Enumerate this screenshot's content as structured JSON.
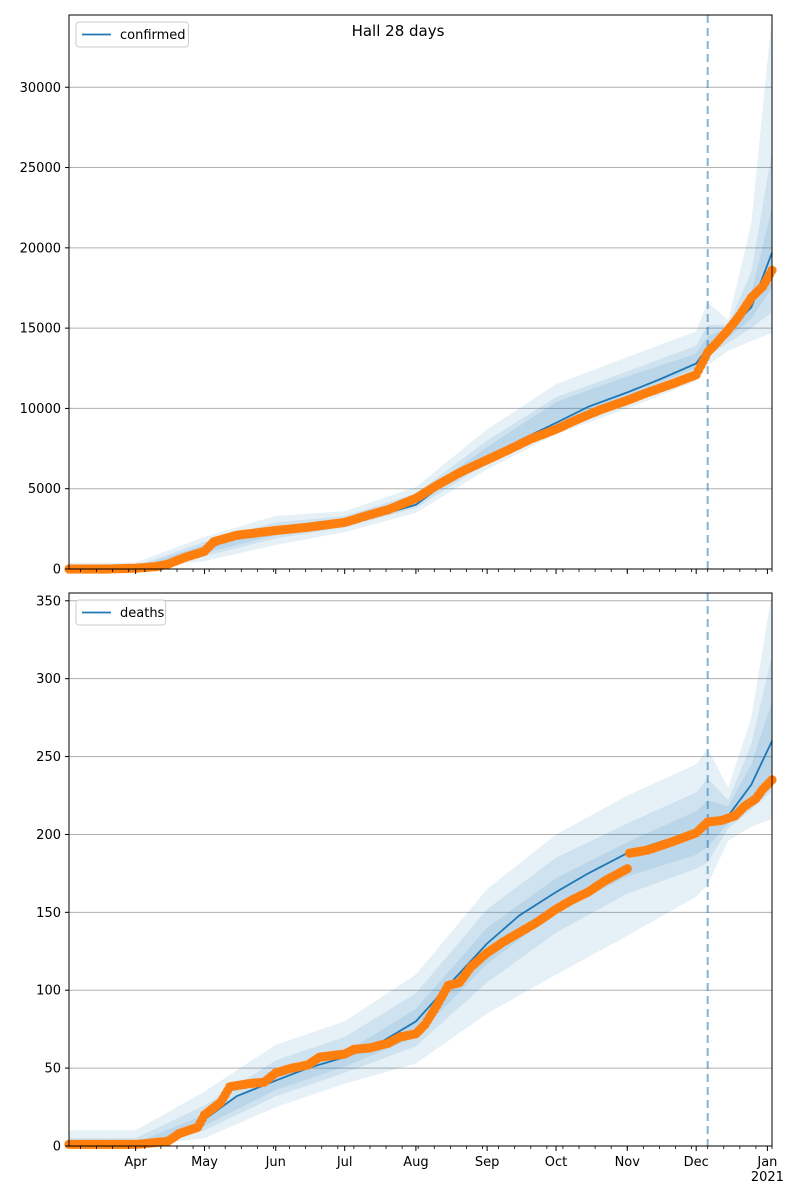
{
  "figure": {
    "title": "Hall 28 days"
  },
  "colors": {
    "model": "#1f77b4",
    "observed": "#ff7f0e",
    "band": "#1f77b4",
    "grid": "#b0b0b0",
    "forecast_line": "#1f77b4"
  },
  "chart_data": [
    {
      "type": "line",
      "title": "Hall 28 days",
      "legend": {
        "entries": [
          "confirmed"
        ],
        "placement": "top-left"
      },
      "grid": "horizontal",
      "ylim": [
        0,
        34500
      ],
      "xlim": [
        "2020-03-03",
        "2021-01-03"
      ],
      "yticks": [
        0,
        5000,
        10000,
        15000,
        20000,
        25000,
        30000
      ],
      "ytick_labels": [
        "0",
        "5000",
        "10000",
        "15000",
        "20000",
        "25000",
        "30000"
      ],
      "forecast_start": "2020-12-06",
      "series": [
        {
          "name": "confirmed",
          "kind": "model_median",
          "x": [
            "2020-03-03",
            "2020-04-01",
            "2020-04-15",
            "2020-05-01",
            "2020-05-15",
            "2020-06-01",
            "2020-06-15",
            "2020-07-01",
            "2020-07-15",
            "2020-08-01",
            "2020-08-15",
            "2020-09-01",
            "2020-09-15",
            "2020-10-01",
            "2020-10-15",
            "2020-11-01",
            "2020-11-15",
            "2020-12-01",
            "2020-12-06",
            "2020-12-15",
            "2020-12-25",
            "2021-01-03"
          ],
          "y": [
            0,
            0,
            300,
            1200,
            2000,
            2300,
            2600,
            2800,
            3300,
            4000,
            5500,
            6800,
            8000,
            9100,
            10100,
            11000,
            11800,
            12800,
            13800,
            14800,
            16300,
            19700
          ]
        },
        {
          "name": "",
          "kind": "observed",
          "x": [
            "2020-03-03",
            "2020-03-20",
            "2020-04-01",
            "2020-04-10",
            "2020-04-15",
            "2020-04-22",
            "2020-05-01",
            "2020-05-05",
            "2020-05-15",
            "2020-06-01",
            "2020-06-15",
            "2020-07-01",
            "2020-07-10",
            "2020-07-20",
            "2020-08-01",
            "2020-08-10",
            "2020-08-20",
            "2020-09-01",
            "2020-09-10",
            "2020-09-20",
            "2020-10-01",
            "2020-10-10",
            "2020-10-20",
            "2020-11-01",
            "2020-11-10",
            "2020-11-20",
            "2020-12-01",
            "2020-12-06",
            "2020-12-10",
            "2020-12-15",
            "2020-12-20",
            "2020-12-25",
            "2020-12-30",
            "2021-01-03"
          ],
          "y": [
            0,
            0,
            50,
            150,
            300,
            700,
            1100,
            1700,
            2100,
            2400,
            2600,
            2900,
            3300,
            3700,
            4400,
            5200,
            6000,
            6800,
            7400,
            8100,
            8700,
            9300,
            9900,
            10500,
            11000,
            11500,
            12100,
            13500,
            14100,
            14900,
            15800,
            16900,
            17600,
            18600
          ]
        }
      ],
      "bands": [
        {
          "level": "outer",
          "x": [
            "2020-03-03",
            "2020-04-01",
            "2020-05-01",
            "2020-06-01",
            "2020-07-01",
            "2020-08-01",
            "2020-09-01",
            "2020-10-01",
            "2020-11-01",
            "2020-12-01",
            "2020-12-06",
            "2020-12-15",
            "2020-12-25",
            "2021-01-03"
          ],
          "lo": [
            0,
            0,
            500,
            1500,
            2300,
            3500,
            6200,
            8400,
            10000,
            11700,
            12700,
            13600,
            14200,
            14700
          ],
          "hi": [
            400,
            400,
            2000,
            3300,
            3600,
            5100,
            8700,
            11500,
            13200,
            14800,
            16600,
            15500,
            21500,
            34500
          ]
        },
        {
          "level": "middle",
          "x": [
            "2020-03-03",
            "2020-04-01",
            "2020-05-01",
            "2020-06-01",
            "2020-07-01",
            "2020-08-01",
            "2020-09-01",
            "2020-10-01",
            "2020-11-01",
            "2020-12-01",
            "2020-12-06",
            "2020-12-15",
            "2020-12-25",
            "2021-01-03"
          ],
          "lo": [
            0,
            0,
            800,
            1900,
            2600,
            3800,
            6600,
            8900,
            10500,
            12200,
            13200,
            14100,
            15000,
            16000
          ],
          "hi": [
            200,
            200,
            1700,
            2900,
            3300,
            4700,
            8000,
            10700,
            12300,
            13900,
            15200,
            15200,
            18500,
            26000
          ]
        },
        {
          "level": "inner",
          "x": [
            "2020-03-03",
            "2020-04-01",
            "2020-05-01",
            "2020-06-01",
            "2020-07-01",
            "2020-08-01",
            "2020-09-01",
            "2020-10-01",
            "2020-11-01",
            "2020-12-01",
            "2020-12-06",
            "2020-12-15",
            "2020-12-25",
            "2021-01-03"
          ],
          "lo": [
            0,
            0,
            1000,
            2100,
            2700,
            4000,
            6900,
            9100,
            10800,
            12500,
            13500,
            14400,
            15600,
            17500
          ],
          "hi": [
            100,
            100,
            1500,
            2600,
            3000,
            4400,
            7600,
            10400,
            12000,
            13400,
            14500,
            15000,
            17200,
            22500
          ]
        }
      ]
    },
    {
      "type": "line",
      "title": "",
      "legend": {
        "entries": [
          "deaths"
        ],
        "placement": "top-left"
      },
      "grid": "horizontal",
      "ylim": [
        0,
        355
      ],
      "xlim": [
        "2020-03-03",
        "2021-01-03"
      ],
      "yticks": [
        0,
        50,
        100,
        150,
        200,
        250,
        300,
        350
      ],
      "ytick_labels": [
        "0",
        "50",
        "100",
        "150",
        "200",
        "250",
        "300",
        "350"
      ],
      "xtick_labels": [
        "Apr",
        "May",
        "Jun",
        "Jul",
        "Aug",
        "Sep",
        "Oct",
        "Nov",
        "Dec",
        "Jan\n2021"
      ],
      "forecast_start": "2020-12-06",
      "series": [
        {
          "name": "deaths",
          "kind": "model_median",
          "x": [
            "2020-03-03",
            "2020-04-01",
            "2020-04-15",
            "2020-05-01",
            "2020-05-15",
            "2020-06-01",
            "2020-06-15",
            "2020-07-01",
            "2020-07-15",
            "2020-08-01",
            "2020-08-15",
            "2020-09-01",
            "2020-09-15",
            "2020-10-01",
            "2020-10-15",
            "2020-11-01",
            "2020-11-15",
            "2020-12-01",
            "2020-12-06",
            "2020-12-15",
            "2020-12-25",
            "2021-01-03"
          ],
          "y": [
            0,
            0,
            4,
            17,
            32,
            42,
            50,
            57,
            65,
            80,
            103,
            130,
            148,
            163,
            175,
            188,
            195,
            202,
            208,
            212,
            232,
            260
          ]
        },
        {
          "name": "",
          "kind": "observed",
          "x": [
            "2020-03-03",
            "2020-04-01",
            "2020-04-15",
            "2020-04-20",
            "2020-04-28",
            "2020-05-01",
            "2020-05-08",
            "2020-05-12",
            "2020-05-20",
            "2020-05-27",
            "2020-06-01",
            "2020-06-08",
            "2020-06-15",
            "2020-06-20",
            "2020-06-25",
            "2020-07-01",
            "2020-07-05",
            "2020-07-12",
            "2020-07-20",
            "2020-07-25",
            "2020-08-01",
            "2020-08-05",
            "2020-08-10",
            "2020-08-15",
            "2020-08-20",
            "2020-08-25",
            "2020-09-01",
            "2020-09-08",
            "2020-09-15",
            "2020-09-22",
            "2020-10-01",
            "2020-10-08",
            "2020-10-15",
            "2020-10-22",
            "2020-11-01",
            "2020-11-02",
            "2020-11-10",
            "2020-11-20",
            "2020-12-01",
            "2020-12-06",
            "2020-12-12",
            "2020-12-18",
            "2020-12-22",
            "2020-12-27",
            "2020-12-30",
            "2021-01-03"
          ],
          "y": [
            1,
            1,
            3,
            8,
            12,
            20,
            28,
            38,
            40,
            41,
            47,
            50,
            52,
            57,
            58,
            59,
            62,
            63,
            66,
            70,
            72,
            78,
            90,
            103,
            105,
            115,
            124,
            131,
            137,
            143,
            152,
            158,
            163,
            170,
            178,
            188,
            190,
            195,
            201,
            208,
            209,
            212,
            218,
            223,
            229,
            235
          ]
        }
      ],
      "bands": [
        {
          "level": "outer",
          "x": [
            "2020-03-03",
            "2020-04-01",
            "2020-05-01",
            "2020-06-01",
            "2020-07-01",
            "2020-08-01",
            "2020-09-01",
            "2020-10-01",
            "2020-11-01",
            "2020-12-01",
            "2020-12-06",
            "2020-12-15",
            "2020-12-25",
            "2021-01-03"
          ],
          "lo": [
            0,
            0,
            5,
            25,
            40,
            53,
            85,
            110,
            135,
            160,
            168,
            196,
            205,
            210
          ],
          "hi": [
            10,
            10,
            35,
            65,
            80,
            110,
            165,
            200,
            225,
            245,
            255,
            230,
            275,
            355
          ]
        },
        {
          "level": "middle",
          "x": [
            "2020-03-03",
            "2020-04-01",
            "2020-05-01",
            "2020-06-01",
            "2020-07-01",
            "2020-08-01",
            "2020-09-01",
            "2020-10-01",
            "2020-11-01",
            "2020-12-01",
            "2020-12-06",
            "2020-12-15",
            "2020-12-25",
            "2021-01-03"
          ],
          "lo": [
            0,
            0,
            10,
            32,
            47,
            64,
            105,
            137,
            162,
            178,
            182,
            204,
            216,
            228
          ],
          "hi": [
            5,
            5,
            26,
            55,
            70,
            98,
            152,
            185,
            207,
            227,
            236,
            222,
            258,
            315
          ]
        },
        {
          "level": "inner",
          "x": [
            "2020-03-03",
            "2020-04-01",
            "2020-05-01",
            "2020-06-01",
            "2020-07-01",
            "2020-08-01",
            "2020-09-01",
            "2020-10-01",
            "2020-11-01",
            "2020-12-01",
            "2020-12-06",
            "2020-12-15",
            "2020-12-25",
            "2021-01-03"
          ],
          "lo": [
            0,
            0,
            13,
            36,
            51,
            70,
            117,
            150,
            173,
            187,
            192,
            207,
            222,
            240
          ],
          "hi": [
            2,
            2,
            20,
            46,
            60,
            88,
            140,
            172,
            195,
            215,
            222,
            218,
            245,
            285
          ]
        }
      ]
    }
  ]
}
